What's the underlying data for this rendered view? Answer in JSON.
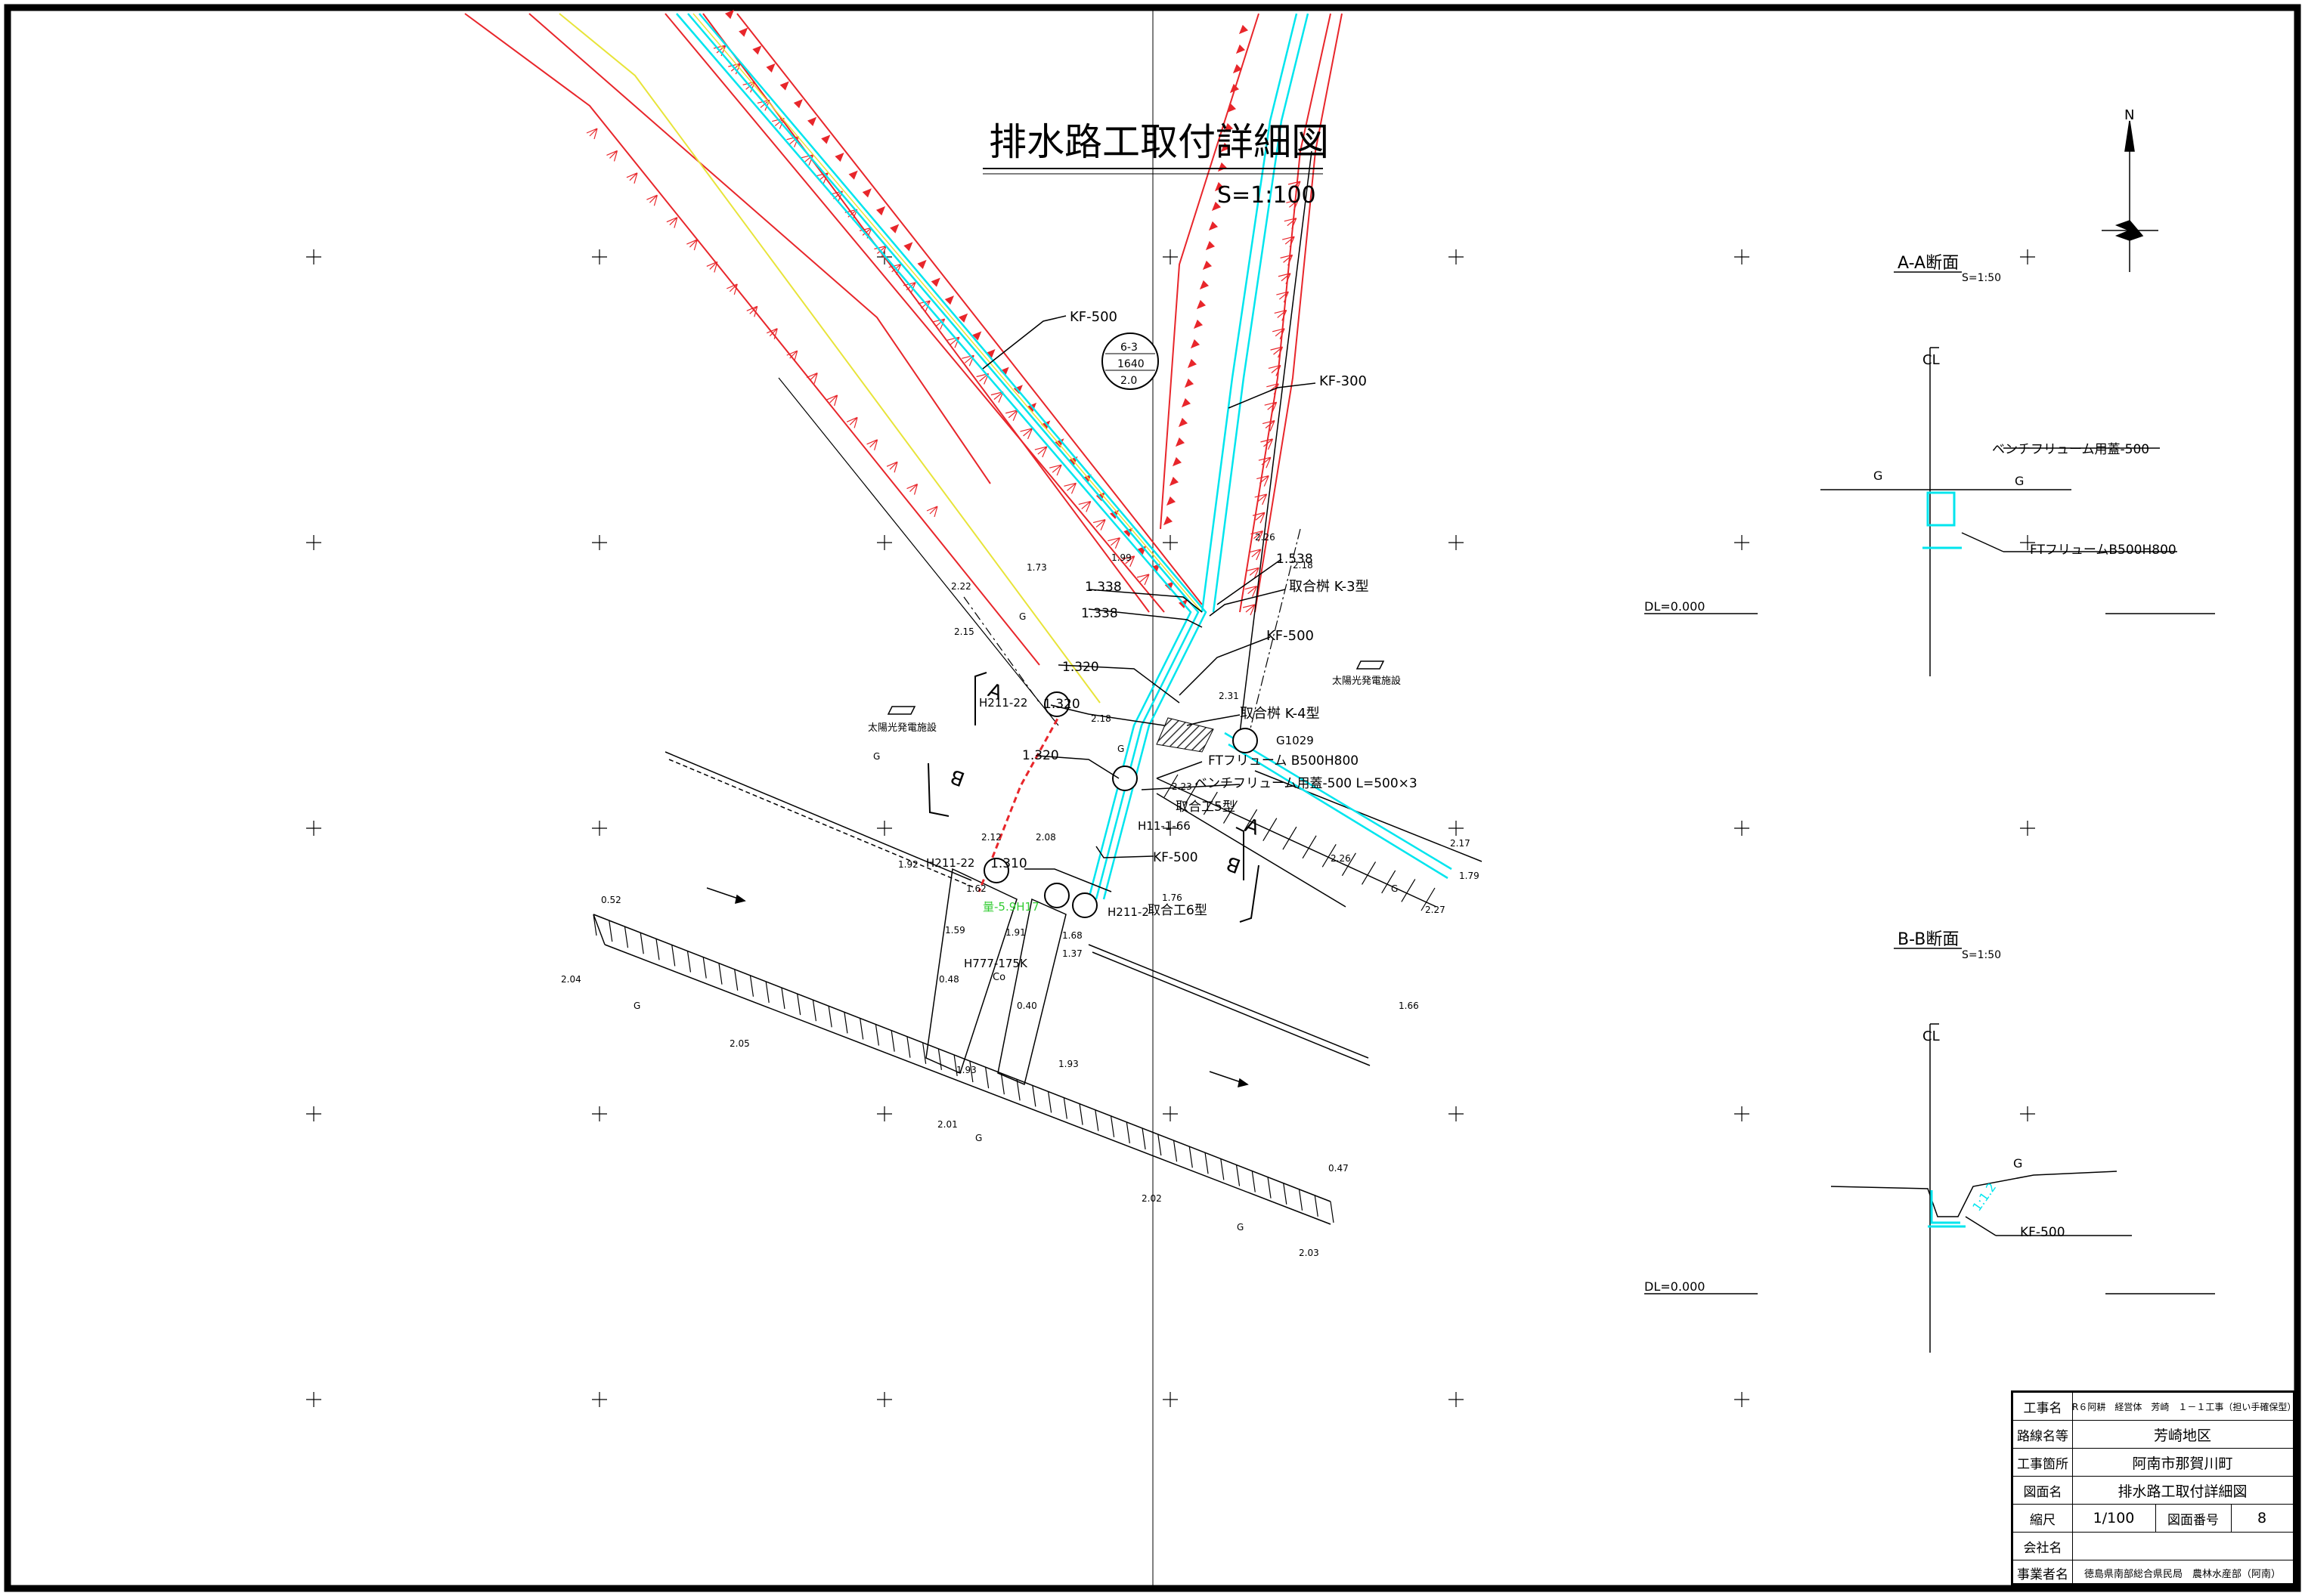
{
  "drawing": {
    "title": "排水路工取付詳細図",
    "scale": "S=1:100",
    "colors": {
      "red": "#e8262b",
      "cyan": "#00e5ee",
      "yellow": "#e8e43a",
      "green": "#33cc33",
      "gray": "#555555"
    }
  },
  "north_label": "N",
  "labels": {
    "kf500_a": "KF-500",
    "kf300": "KF-300",
    "bubble_top": "6-3",
    "bubble_mid": "1640",
    "bubble_bot": "2.0",
    "k3": "取合桝 K-3型",
    "kf500_b": "KF-500",
    "k4": "取合桝 K-4型",
    "g1029": "G1029",
    "ft_flume": "FTフリューム B500H800",
    "bench_cover": "ベンチフリューム用蓋-500 L=500×3",
    "toriai5": "取合工5型",
    "h11": "H11-1-66",
    "kf500_c": "KF-500",
    "toriai6": "取合工6型",
    "h211_2": "H211-2",
    "h211_22a": "H211-22",
    "h211_22b": "H211-22",
    "h777": "H777-175K",
    "green_label": "量-5.9H17",
    "solar_a": "太陽光発電施設",
    "solar_b": "太陽光発電施設",
    "lvl_1338a": "1.338",
    "lvl_1338b": "1.338",
    "lvl_1538": "1.538",
    "lvl_1320a": "1.320",
    "lvl_1320b": "1.320",
    "lvl_1320c": "1.320",
    "lvl_1310": "1.310",
    "sec_a_left": "A",
    "sec_a_right": "A",
    "sec_b_left": "B",
    "sec_b_right": "B",
    "co": "Co",
    "spot": [
      "2.22",
      "2.15",
      "1.73",
      "2.18",
      "1.99",
      "2.26",
      "2.18",
      "2.31",
      "2.23",
      "2.12",
      "2.08",
      "1.92",
      "1.59",
      "1.91",
      "1.68",
      "1.37",
      "1.76",
      "1.66",
      "0.52",
      "2.04",
      "2.05",
      "1.93",
      "1.93",
      "2.01",
      "2.02",
      "0.47",
      "2.03",
      "2.26",
      "2.27",
      "2.17",
      "1.79",
      "0.48",
      "0.40",
      "1.62",
      "G",
      "G",
      "G",
      "G",
      "G",
      "G",
      "G"
    ]
  },
  "section_aa": {
    "title": "A-A断面",
    "scale": "S=1:50",
    "cl": "CL",
    "g_left": "G",
    "g_right": "G",
    "cover": "ベンチフリューム用蓋-500",
    "flume": "FTフリュームB500H800",
    "dl": "DL=0.000"
  },
  "section_bb": {
    "title": "B-B断面",
    "scale": "S=1:50",
    "cl": "CL",
    "g": "G",
    "slope": "1:1.2",
    "kf": "KF-500",
    "dl": "DL=0.000"
  },
  "title_block": {
    "rows": [
      {
        "label": "工事名",
        "value": "R６阿耕　経営体　芳崎　１－１工事（担い手確保型）"
      },
      {
        "label": "路線名等",
        "value": "芳崎地区"
      },
      {
        "label": "工事箇所",
        "value": "阿南市那賀川町"
      },
      {
        "label": "図面名",
        "value": "排水路工取付詳細図"
      },
      {
        "label": "縮尺",
        "value": "1/100",
        "label2": "図面番号",
        "value2": "8"
      },
      {
        "label": "会社名",
        "value": ""
      },
      {
        "label": "事業者名",
        "value": "徳島県南部総合県民局　農林水産部（阿南）"
      }
    ]
  }
}
